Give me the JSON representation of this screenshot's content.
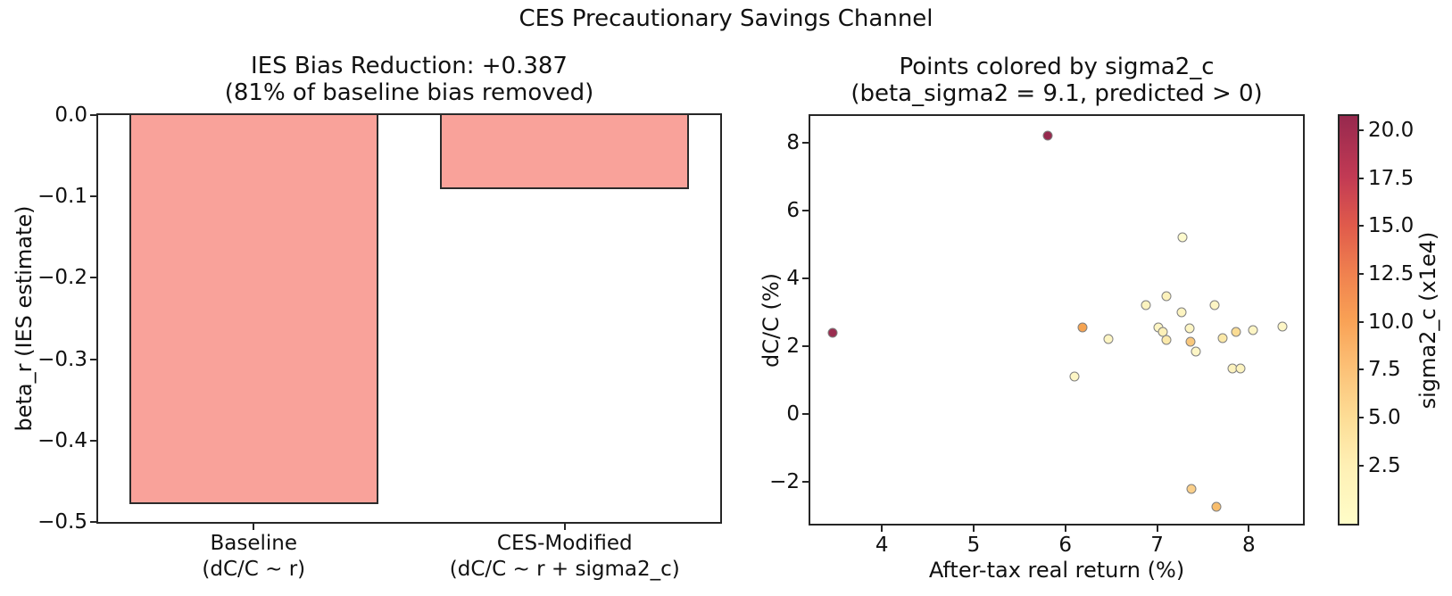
{
  "figure": {
    "suptitle": "CES Precautionary Savings Channel",
    "background_color": "#ffffff",
    "text_color": "#111111"
  },
  "chart_data": [
    {
      "type": "bar",
      "title": "IES Bias Reduction: +0.387 (81% of baseline bias removed)",
      "title_lines": [
        "IES Bias Reduction: +0.387",
        "(81% of baseline bias removed)"
      ],
      "ylabel": "beta_r (IES estimate)",
      "xlabel": "",
      "categories": [
        {
          "line1": "Baseline",
          "line2": "(dC/C ~ r)"
        },
        {
          "line1": "CES-Modified",
          "line2": "(dC/C ~ r + sigma2_c)"
        }
      ],
      "values": [
        -0.478,
        -0.091
      ],
      "ylim": [
        -0.5,
        0.0
      ],
      "yticks": [
        0.0,
        -0.1,
        -0.2,
        -0.3,
        -0.4,
        -0.5
      ],
      "ytick_labels": [
        "0.0",
        "−0.1",
        "−0.2",
        "−0.3",
        "−0.4",
        "−0.5"
      ],
      "bar_color": "#f9a29a",
      "bar_edge_color": "#2b2b2b",
      "grid": false
    },
    {
      "type": "scatter",
      "title": "Points colored by sigma2_c (beta_sigma2 = 9.1, predicted > 0)",
      "title_lines": [
        "Points colored by sigma2_c",
        "(beta_sigma2 = 9.1, predicted > 0)"
      ],
      "xlabel": "After-tax real return (%)",
      "ylabel": "dC/C (%)",
      "xlim": [
        3.22,
        8.59
      ],
      "ylim": [
        -3.25,
        8.8
      ],
      "xticks": [
        4,
        5,
        6,
        7,
        8
      ],
      "xtick_labels": [
        "4",
        "5",
        "6",
        "7",
        "8"
      ],
      "yticks": [
        8,
        6,
        4,
        2,
        0,
        -2
      ],
      "ytick_labels": [
        "8",
        "6",
        "4",
        "2",
        "0",
        "−2"
      ],
      "grid": false,
      "marker_edge_color": "#7f7f7f",
      "points": [
        {
          "x": 3.46,
          "y": 2.4,
          "sigma2_c": 20.2,
          "color": "#9a2d50"
        },
        {
          "x": 5.81,
          "y": 8.21,
          "sigma2_c": 20.6,
          "color": "#97294e"
        },
        {
          "x": 6.1,
          "y": 1.1,
          "sigma2_c": 2.0,
          "color": "#fdf6c5"
        },
        {
          "x": 6.19,
          "y": 2.56,
          "sigma2_c": 9.8,
          "color": "#f5a351"
        },
        {
          "x": 6.47,
          "y": 2.22,
          "sigma2_c": 2.1,
          "color": "#fdf5c3"
        },
        {
          "x": 6.88,
          "y": 3.2,
          "sigma2_c": 2.3,
          "color": "#fcf3bf"
        },
        {
          "x": 7.01,
          "y": 2.56,
          "sigma2_c": 2.0,
          "color": "#fdf5c3"
        },
        {
          "x": 7.06,
          "y": 2.43,
          "sigma2_c": 2.4,
          "color": "#fcf0b8"
        },
        {
          "x": 7.1,
          "y": 3.48,
          "sigma2_c": 2.0,
          "color": "#fcf2bc"
        },
        {
          "x": 7.1,
          "y": 2.18,
          "sigma2_c": 3.4,
          "color": "#fbe9aa"
        },
        {
          "x": 7.27,
          "y": 3.0,
          "sigma2_c": 1.9,
          "color": "#fdf4c1"
        },
        {
          "x": 7.28,
          "y": 5.22,
          "sigma2_c": 1.2,
          "color": "#fdfacd"
        },
        {
          "x": 7.35,
          "y": 2.53,
          "sigma2_c": 2.0,
          "color": "#fdf5c3"
        },
        {
          "x": 7.36,
          "y": 2.13,
          "sigma2_c": 6.2,
          "color": "#f9c87d"
        },
        {
          "x": 7.37,
          "y": -2.22,
          "sigma2_c": 5.4,
          "color": "#facf8a"
        },
        {
          "x": 7.42,
          "y": 1.85,
          "sigma2_c": 1.8,
          "color": "#fdf6c6"
        },
        {
          "x": 7.63,
          "y": 3.22,
          "sigma2_c": 1.9,
          "color": "#fdf5c4"
        },
        {
          "x": 7.65,
          "y": -2.76,
          "sigma2_c": 7.0,
          "color": "#f8bd6c"
        },
        {
          "x": 7.71,
          "y": 2.24,
          "sigma2_c": 3.6,
          "color": "#fbe8a7"
        },
        {
          "x": 7.82,
          "y": 1.35,
          "sigma2_c": 2.1,
          "color": "#fcf2bd"
        },
        {
          "x": 7.86,
          "y": 2.42,
          "sigma2_c": 4.6,
          "color": "#fadc94"
        },
        {
          "x": 7.91,
          "y": 1.35,
          "sigma2_c": 2.0,
          "color": "#fcf3bf"
        },
        {
          "x": 8.05,
          "y": 2.48,
          "sigma2_c": 1.9,
          "color": "#fdf5c4"
        },
        {
          "x": 8.37,
          "y": 2.59,
          "sigma2_c": 1.7,
          "color": "#fdf6c6"
        }
      ],
      "colorbar": {
        "label": "sigma2_c (x1e4)",
        "colormap": "YlOrRd",
        "vmin": -0.55,
        "vmax": 20.75,
        "ticks": [
          20.0,
          17.5,
          15.0,
          12.5,
          10.0,
          7.5,
          5.0,
          2.5
        ],
        "tick_labels": [
          "20.0",
          "17.5",
          "15.0",
          "12.5",
          "10.0",
          "7.5",
          "5.0",
          "2.5"
        ],
        "gradient_top_to_bottom": [
          {
            "pos": 0,
            "color": "#97294e"
          },
          {
            "pos": 15,
            "color": "#c23a54"
          },
          {
            "pos": 27,
            "color": "#e05b4b"
          },
          {
            "pos": 39,
            "color": "#f0824f"
          },
          {
            "pos": 50,
            "color": "#f9a155"
          },
          {
            "pos": 62,
            "color": "#fcc177"
          },
          {
            "pos": 74,
            "color": "#fddd96"
          },
          {
            "pos": 86,
            "color": "#fef0b5"
          },
          {
            "pos": 100,
            "color": "#fffdc8"
          }
        ]
      }
    }
  ]
}
